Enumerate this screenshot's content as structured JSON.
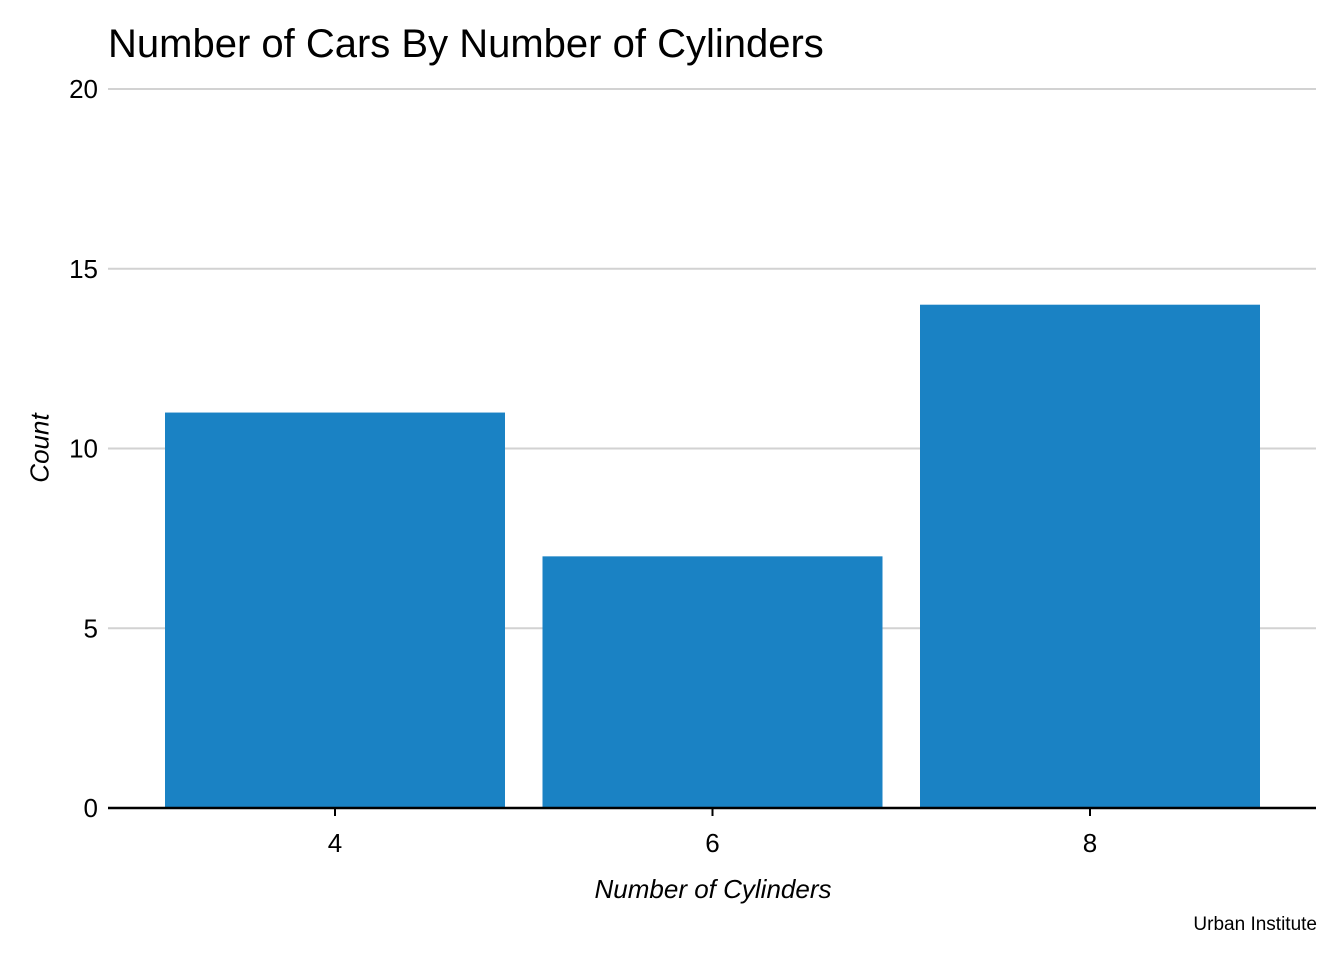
{
  "chart_data": {
    "type": "bar",
    "title": "Number of Cars By Number of Cylinders",
    "xlabel": "Number of Cylinders",
    "ylabel": "Count",
    "categories": [
      "4",
      "6",
      "8"
    ],
    "values": [
      11,
      7,
      14
    ],
    "ylim": [
      0,
      20
    ],
    "yticks": [
      "0",
      "5",
      "10",
      "15",
      "20"
    ],
    "grid": "horizontal",
    "bar_color": "#1a82c4",
    "grid_color": "#d2d2d2",
    "caption": "Urban Institute"
  }
}
